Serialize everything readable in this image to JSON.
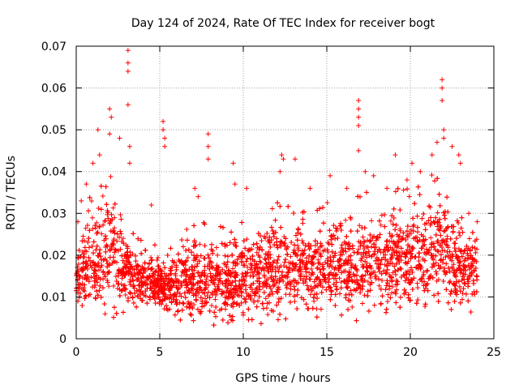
{
  "chart_data": {
    "type": "scatter",
    "title": "Day 124 of 2024, Rate Of TEC Index for receiver bogt",
    "xlabel": "GPS time / hours",
    "ylabel": "ROTI / TECUs",
    "xlim": [
      0,
      25
    ],
    "ylim": [
      0,
      0.07
    ],
    "xticks": [
      0,
      5,
      10,
      15,
      20,
      25
    ],
    "xtick_labels": [
      "0",
      "5",
      "10",
      "15",
      "20",
      "25"
    ],
    "yticks": [
      0,
      0.01,
      0.02,
      0.03,
      0.04,
      0.05,
      0.06,
      0.07
    ],
    "ytick_labels": [
      "0",
      "0.01",
      "0.02",
      "0.03",
      "0.04",
      "0.05",
      "0.06",
      "0.07"
    ],
    "grid": true,
    "marker": "+",
    "color": "#ff0000",
    "data_range_x": [
      0,
      24
    ],
    "series_shape_note": "dense cloud of points mostly between 0.005 and 0.03 across 0-24 h",
    "profile": [
      {
        "x": 0,
        "center": 0.015,
        "spread": 0.012
      },
      {
        "x": 1,
        "center": 0.018,
        "spread": 0.016
      },
      {
        "x": 2,
        "center": 0.02,
        "spread": 0.018
      },
      {
        "x": 3,
        "center": 0.016,
        "spread": 0.012
      },
      {
        "x": 4,
        "center": 0.014,
        "spread": 0.008
      },
      {
        "x": 5,
        "center": 0.013,
        "spread": 0.007
      },
      {
        "x": 6,
        "center": 0.012,
        "spread": 0.008
      },
      {
        "x": 7,
        "center": 0.014,
        "spread": 0.012
      },
      {
        "x": 8,
        "center": 0.014,
        "spread": 0.01
      },
      {
        "x": 9,
        "center": 0.013,
        "spread": 0.011
      },
      {
        "x": 10,
        "center": 0.014,
        "spread": 0.011
      },
      {
        "x": 11,
        "center": 0.015,
        "spread": 0.012
      },
      {
        "x": 12,
        "center": 0.017,
        "spread": 0.014
      },
      {
        "x": 13,
        "center": 0.017,
        "spread": 0.012
      },
      {
        "x": 14,
        "center": 0.016,
        "spread": 0.012
      },
      {
        "x": 15,
        "center": 0.017,
        "spread": 0.012
      },
      {
        "x": 16,
        "center": 0.017,
        "spread": 0.012
      },
      {
        "x": 17,
        "center": 0.018,
        "spread": 0.014
      },
      {
        "x": 18,
        "center": 0.018,
        "spread": 0.013
      },
      {
        "x": 19,
        "center": 0.018,
        "spread": 0.014
      },
      {
        "x": 20,
        "center": 0.019,
        "spread": 0.014
      },
      {
        "x": 21,
        "center": 0.02,
        "spread": 0.016
      },
      {
        "x": 22,
        "center": 0.021,
        "spread": 0.017
      },
      {
        "x": 23,
        "center": 0.016,
        "spread": 0.012
      },
      {
        "x": 24,
        "center": 0.015,
        "spread": 0.01
      }
    ],
    "outliers": [
      {
        "x": 0.1,
        "y": 0.028
      },
      {
        "x": 0.3,
        "y": 0.033
      },
      {
        "x": 0.6,
        "y": 0.037
      },
      {
        "x": 1.0,
        "y": 0.042
      },
      {
        "x": 1.4,
        "y": 0.044
      },
      {
        "x": 1.3,
        "y": 0.05
      },
      {
        "x": 2.0,
        "y": 0.055
      },
      {
        "x": 2.1,
        "y": 0.053
      },
      {
        "x": 2.0,
        "y": 0.049
      },
      {
        "x": 2.6,
        "y": 0.048
      },
      {
        "x": 3.1,
        "y": 0.069
      },
      {
        "x": 3.1,
        "y": 0.066
      },
      {
        "x": 3.1,
        "y": 0.064
      },
      {
        "x": 3.1,
        "y": 0.056
      },
      {
        "x": 3.2,
        "y": 0.046
      },
      {
        "x": 3.2,
        "y": 0.042
      },
      {
        "x": 5.2,
        "y": 0.052
      },
      {
        "x": 5.2,
        "y": 0.05
      },
      {
        "x": 5.3,
        "y": 0.048
      },
      {
        "x": 5.3,
        "y": 0.046
      },
      {
        "x": 4.5,
        "y": 0.032
      },
      {
        "x": 7.1,
        "y": 0.036
      },
      {
        "x": 7.3,
        "y": 0.034
      },
      {
        "x": 7.9,
        "y": 0.049
      },
      {
        "x": 7.9,
        "y": 0.046
      },
      {
        "x": 7.9,
        "y": 0.043
      },
      {
        "x": 9.4,
        "y": 0.042
      },
      {
        "x": 9.5,
        "y": 0.037
      },
      {
        "x": 10.2,
        "y": 0.036
      },
      {
        "x": 12.3,
        "y": 0.044
      },
      {
        "x": 12.4,
        "y": 0.043
      },
      {
        "x": 12.2,
        "y": 0.04
      },
      {
        "x": 13.1,
        "y": 0.043
      },
      {
        "x": 14.0,
        "y": 0.036
      },
      {
        "x": 15.2,
        "y": 0.039
      },
      {
        "x": 16.2,
        "y": 0.036
      },
      {
        "x": 16.9,
        "y": 0.057
      },
      {
        "x": 16.9,
        "y": 0.055
      },
      {
        "x": 16.9,
        "y": 0.053
      },
      {
        "x": 16.9,
        "y": 0.051
      },
      {
        "x": 16.9,
        "y": 0.045
      },
      {
        "x": 17.3,
        "y": 0.04
      },
      {
        "x": 17.8,
        "y": 0.039
      },
      {
        "x": 18.6,
        "y": 0.036
      },
      {
        "x": 19.1,
        "y": 0.044
      },
      {
        "x": 19.8,
        "y": 0.038
      },
      {
        "x": 20.1,
        "y": 0.042
      },
      {
        "x": 20.6,
        "y": 0.04
      },
      {
        "x": 21.3,
        "y": 0.044
      },
      {
        "x": 21.6,
        "y": 0.047
      },
      {
        "x": 21.9,
        "y": 0.062
      },
      {
        "x": 21.9,
        "y": 0.06
      },
      {
        "x": 21.9,
        "y": 0.057
      },
      {
        "x": 22.0,
        "y": 0.05
      },
      {
        "x": 22.0,
        "y": 0.048
      },
      {
        "x": 22.5,
        "y": 0.046
      },
      {
        "x": 22.9,
        "y": 0.044
      },
      {
        "x": 23.0,
        "y": 0.042
      },
      {
        "x": 23.5,
        "y": 0.03
      },
      {
        "x": 24.0,
        "y": 0.028
      }
    ]
  }
}
